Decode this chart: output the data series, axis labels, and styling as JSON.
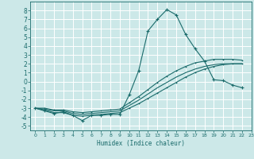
{
  "xlabel": "Humidex (Indice chaleur)",
  "bg_color": "#cce8e8",
  "grid_color": "#b0d0d0",
  "line_color": "#1a6b6b",
  "xlim": [
    -0.5,
    23
  ],
  "ylim": [
    -5.5,
    9
  ],
  "xticks": [
    0,
    1,
    2,
    3,
    4,
    5,
    6,
    7,
    8,
    9,
    10,
    11,
    12,
    13,
    14,
    15,
    16,
    17,
    18,
    19,
    20,
    21,
    22,
    23
  ],
  "yticks": [
    -5,
    -4,
    -3,
    -2,
    -1,
    0,
    1,
    2,
    3,
    4,
    5,
    6,
    7,
    8
  ],
  "line1_x": [
    0,
    1,
    2,
    3,
    4,
    5,
    6,
    7,
    8,
    9,
    10,
    11,
    12,
    13,
    14,
    15,
    16,
    17,
    18,
    19,
    20,
    21,
    22
  ],
  "line1_y": [
    -3.0,
    -3.3,
    -3.6,
    -3.4,
    -3.8,
    -4.4,
    -3.8,
    -3.8,
    -3.7,
    -3.7,
    -1.5,
    1.2,
    5.7,
    7.0,
    8.1,
    7.5,
    5.3,
    3.7,
    2.3,
    0.2,
    0.1,
    -0.4,
    -0.7
  ],
  "line2_x": [
    0,
    1,
    2,
    3,
    4,
    5,
    6,
    7,
    8,
    9,
    10,
    11,
    12,
    13,
    14,
    15,
    16,
    17,
    18,
    19,
    20,
    21,
    22
  ],
  "line2_y": [
    -3.0,
    -3.2,
    -3.5,
    -3.5,
    -3.8,
    -3.9,
    -3.8,
    -3.7,
    -3.6,
    -3.5,
    -3.0,
    -2.5,
    -1.9,
    -1.3,
    -0.7,
    -0.1,
    0.5,
    1.0,
    1.4,
    1.7,
    1.9,
    2.0,
    2.0
  ],
  "line3_x": [
    0,
    1,
    2,
    3,
    4,
    5,
    6,
    7,
    8,
    9,
    10,
    11,
    12,
    13,
    14,
    15,
    16,
    17,
    18,
    19,
    20,
    21,
    22
  ],
  "line3_y": [
    -3.0,
    -3.1,
    -3.3,
    -3.3,
    -3.6,
    -3.7,
    -3.6,
    -3.5,
    -3.4,
    -3.3,
    -2.7,
    -2.1,
    -1.4,
    -0.7,
    -0.1,
    0.5,
    1.0,
    1.4,
    1.7,
    1.9,
    2.0,
    2.0,
    2.0
  ],
  "line4_x": [
    0,
    1,
    2,
    3,
    4,
    5,
    6,
    7,
    8,
    9,
    10,
    11,
    12,
    13,
    14,
    15,
    16,
    17,
    18,
    19,
    20,
    21,
    22
  ],
  "line4_y": [
    -3.0,
    -3.0,
    -3.2,
    -3.2,
    -3.4,
    -3.5,
    -3.4,
    -3.3,
    -3.2,
    -3.1,
    -2.4,
    -1.7,
    -0.9,
    -0.1,
    0.6,
    1.2,
    1.7,
    2.1,
    2.3,
    2.5,
    2.5,
    2.5,
    2.4
  ]
}
